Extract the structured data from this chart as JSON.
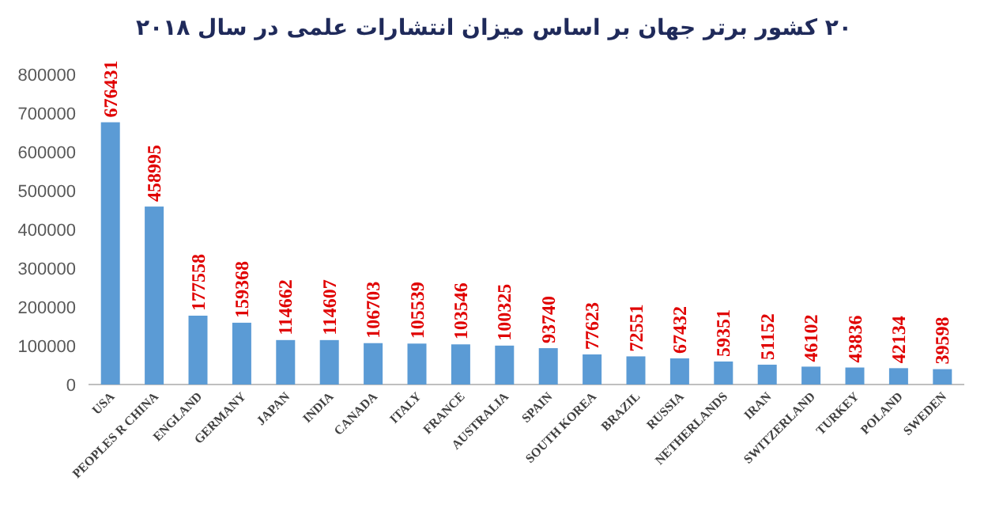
{
  "chart_data": {
    "type": "bar",
    "title": "۲۰ کشور برتر جهان بر اساس میزان انتشارات علمی در سال ۲۰۱۸",
    "categories": [
      "USA",
      "PEOPLES R CHINA",
      "ENGLAND",
      "GERMANY",
      "JAPAN",
      "INDIA",
      "CANADA",
      "ITALY",
      "FRANCE",
      "AUSTRALIA",
      "SPAIN",
      "SOUTH KOREA",
      "BRAZIL",
      "RUSSIA",
      "NETHERLANDS",
      "IRAN",
      "SWITZERLAND",
      "TURKEY",
      "POLAND",
      "SWEDEN"
    ],
    "values": [
      676431,
      458995,
      177558,
      159368,
      114662,
      114607,
      106703,
      105539,
      103546,
      100325,
      93740,
      77623,
      72551,
      67432,
      59351,
      51152,
      46102,
      43836,
      42134,
      39598
    ],
    "color": "#5b9bd5",
    "data_labels": true,
    "ylim": [
      0,
      800000
    ],
    "yticks": [
      0,
      100000,
      200000,
      300000,
      400000,
      500000,
      600000,
      700000,
      800000
    ]
  }
}
